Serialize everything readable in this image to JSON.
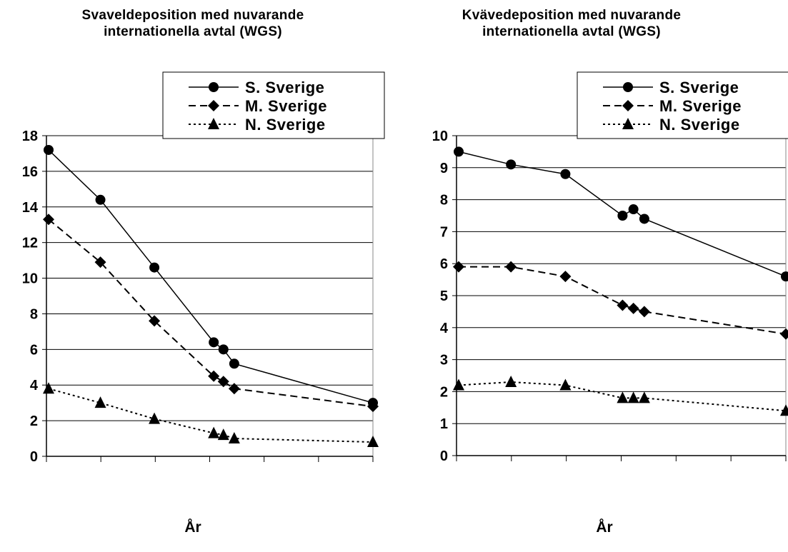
{
  "chart_data": [
    {
      "type": "line",
      "title_lines": [
        "Svaveldeposition med nuvarande",
        "internationella avtal (WGS)"
      ],
      "xlabel": "År",
      "ylabel": "",
      "ylim": [
        0,
        18
      ],
      "yticks": [
        "0",
        "2",
        "4",
        "6",
        "8",
        "10",
        "12",
        "14",
        "16",
        "18"
      ],
      "grid": true,
      "legend_position": "top-right",
      "series": [
        {
          "name": "S. Sverige",
          "style": "solid",
          "marker": "circle",
          "points": [
            [
              0,
              17.2
            ],
            [
              1,
              14.4
            ],
            [
              2,
              10.6
            ],
            [
              3.1,
              6.4
            ],
            [
              3.28,
              6.0
            ],
            [
              3.48,
              5.2
            ],
            [
              6.05,
              3.0
            ]
          ]
        },
        {
          "name": "M. Sverige",
          "style": "dashed",
          "marker": "diamond",
          "points": [
            [
              0,
              13.3
            ],
            [
              1,
              10.9
            ],
            [
              2,
              7.6
            ],
            [
              3.1,
              4.5
            ],
            [
              3.28,
              4.2
            ],
            [
              3.48,
              3.8
            ],
            [
              6.05,
              2.8
            ]
          ]
        },
        {
          "name": "N. Sverige",
          "style": "dotted",
          "marker": "triangle",
          "points": [
            [
              0,
              3.8
            ],
            [
              1,
              3.0
            ],
            [
              2,
              2.1
            ],
            [
              3.1,
              1.3
            ],
            [
              3.28,
              1.2
            ],
            [
              3.48,
              1.0
            ],
            [
              6.05,
              0.8
            ]
          ]
        }
      ]
    },
    {
      "type": "line",
      "title_lines": [
        "Kvävedeposition med nuvarande",
        "internationella avtal (WGS)"
      ],
      "xlabel": "År",
      "ylabel": "",
      "ylim": [
        0,
        10
      ],
      "yticks": [
        "0",
        "1",
        "2",
        "3",
        "4",
        "5",
        "6",
        "7",
        "8",
        "9",
        "10"
      ],
      "grid": true,
      "legend_position": "top-right",
      "series": [
        {
          "name": "S. Sverige",
          "style": "solid",
          "marker": "circle",
          "points": [
            [
              0,
              9.5
            ],
            [
              1,
              9.1
            ],
            [
              2,
              8.8
            ],
            [
              3.05,
              7.5
            ],
            [
              3.25,
              7.7
            ],
            [
              3.45,
              7.4
            ],
            [
              6.05,
              5.6
            ]
          ]
        },
        {
          "name": "M. Sverige",
          "style": "dashed",
          "marker": "diamond",
          "points": [
            [
              0,
              5.9
            ],
            [
              1,
              5.9
            ],
            [
              2,
              5.6
            ],
            [
              3.05,
              4.7
            ],
            [
              3.25,
              4.6
            ],
            [
              3.45,
              4.5
            ],
            [
              6.05,
              3.8
            ]
          ]
        },
        {
          "name": "N. Sverige",
          "style": "dotted",
          "marker": "triangle",
          "points": [
            [
              0,
              2.2
            ],
            [
              1,
              2.3
            ],
            [
              2,
              2.2
            ],
            [
              3.05,
              1.8
            ],
            [
              3.25,
              1.8
            ],
            [
              3.45,
              1.8
            ],
            [
              6.05,
              1.4
            ]
          ]
        }
      ]
    }
  ]
}
